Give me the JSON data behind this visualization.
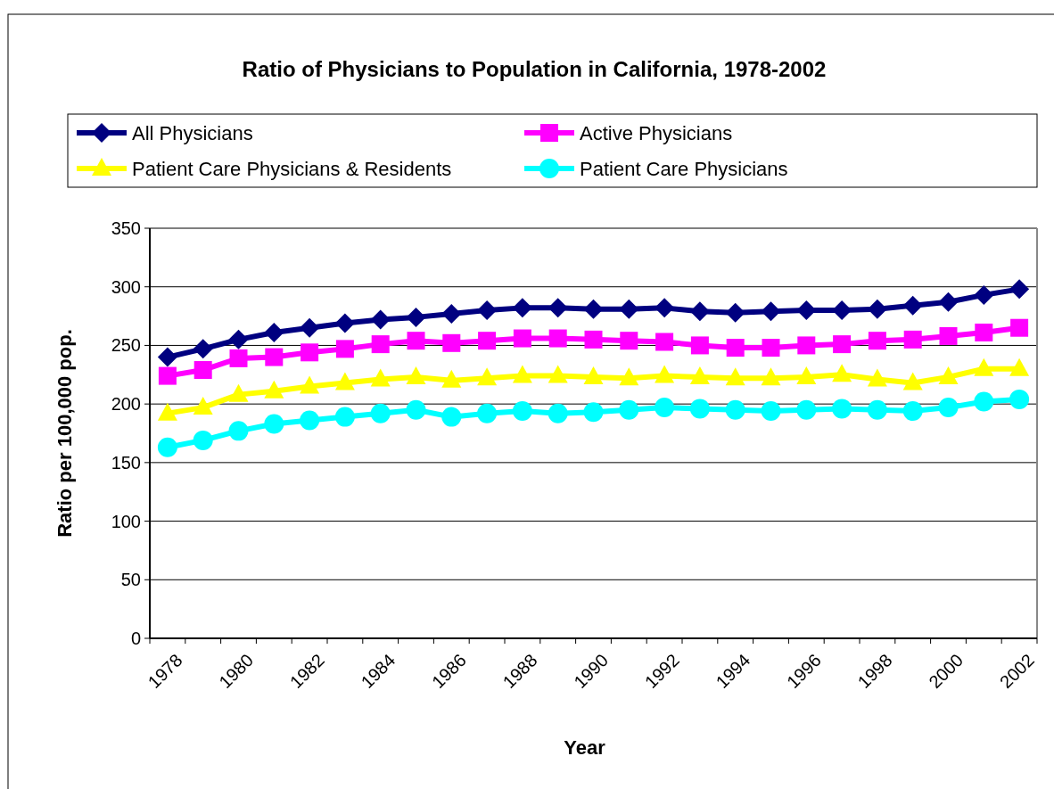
{
  "chart_data": {
    "type": "line",
    "title": "Ratio of Physicians to Population in California, 1978-2002",
    "xlabel": "Year",
    "ylabel": "Ratio per 100,000 pop.",
    "categories": [
      "1978",
      null,
      "1980",
      null,
      "1982",
      null,
      "1984",
      null,
      "1986",
      null,
      "1988",
      null,
      "1990",
      null,
      "1992",
      null,
      "1994",
      null,
      "1996",
      null,
      "1998",
      null,
      "2000",
      null,
      "2002"
    ],
    "series": [
      {
        "name": "All Physicians",
        "color": "#000080",
        "marker": "diamond",
        "values": [
          240,
          247,
          255,
          261,
          265,
          269,
          272,
          274,
          277,
          280,
          282,
          282,
          281,
          281,
          282,
          279,
          278,
          279,
          280,
          280,
          281,
          284,
          287,
          293,
          298
        ]
      },
      {
        "name": "Active Physicians",
        "color": "#ff00ff",
        "marker": "square",
        "values": [
          224,
          229,
          239,
          240,
          244,
          247,
          251,
          254,
          252,
          254,
          256,
          256,
          255,
          254,
          253,
          250,
          248,
          248,
          250,
          251,
          254,
          255,
          258,
          261,
          265
        ]
      },
      {
        "name": "Patient Care Physicians & Residents",
        "color": "#ffff00",
        "marker": "triangle",
        "values": [
          192,
          197,
          208,
          211,
          215,
          218,
          221,
          223,
          220,
          222,
          224,
          224,
          223,
          222,
          224,
          223,
          222,
          222,
          223,
          225,
          221,
          218,
          223,
          230,
          230
        ]
      },
      {
        "name": "Patient Care Physicians",
        "color": "#00ffff",
        "marker": "circle",
        "values": [
          163,
          169,
          177,
          183,
          186,
          189,
          192,
          195,
          189,
          192,
          194,
          192,
          193,
          195,
          197,
          196,
          195,
          194,
          195,
          196,
          195,
          194,
          197,
          202,
          204
        ]
      }
    ],
    "ylim": [
      0,
      350
    ],
    "yticks": [
      0,
      50,
      100,
      150,
      200,
      250,
      300,
      350
    ],
    "grid": "y",
    "legend": "top"
  }
}
